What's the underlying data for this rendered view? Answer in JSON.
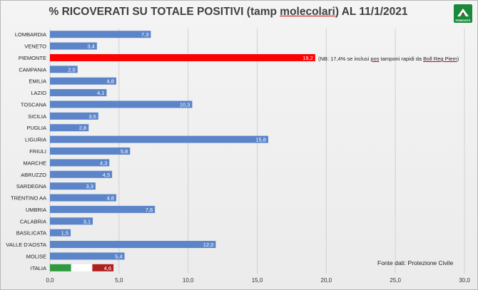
{
  "header": {
    "title_a": "% RICOVERATI SU TOTALE POSITIVI (tamp ",
    "title_b": "molecolari",
    "title_c": ") AL 11/1/2021",
    "logo_text": "PIEMONTE"
  },
  "note": {
    "a": "(NB: 17,4%  se inclusi ",
    "b": "pos",
    "c": " tamponi rapidi da ",
    "d": "Boll Reg Piem",
    "e": ")"
  },
  "source": "Fonte dati: Protezione Civile",
  "colors": {
    "bar": "#5b84c9",
    "highlight": "#ff0000",
    "italy_green": "#2e9b3f",
    "italy_white": "#ffffff",
    "italy_red": "#b02020"
  },
  "chart_data": {
    "type": "bar",
    "orientation": "horizontal",
    "categories": [
      "LOMBARDIA",
      "VENETO",
      "PIEMONTE",
      "CAMPANIA",
      "EMILIA",
      "LAZIO",
      "TOSCANA",
      "SICILIA",
      "PUGLIA",
      "LIGURIA",
      "FRIULI",
      "MARCHE",
      "ABRUZZO",
      "SARDEGNA",
      "TRENTINO AA",
      "UMBRIA",
      "CALABRIA",
      "BASILICATA",
      "VALLE D'AOSTA",
      "MOLISE",
      "ITALIA"
    ],
    "values": [
      7.3,
      3.4,
      19.2,
      2.0,
      4.8,
      4.1,
      10.3,
      3.5,
      2.8,
      15.8,
      5.8,
      4.3,
      4.5,
      3.3,
      4.8,
      7.6,
      3.1,
      1.5,
      12.0,
      5.4,
      4.6
    ],
    "value_labels": [
      "7,3",
      "3,4",
      "19,2",
      "2,0",
      "4,8",
      "4,1",
      "10,3",
      "3,5",
      "2,8",
      "15,8",
      "5,8",
      "4,3",
      "4,5",
      "3,3",
      "4,8",
      "7,6",
      "3,1",
      "1,5",
      "12,0",
      "5,4",
      "4,6"
    ],
    "xlim": [
      0,
      30
    ],
    "xticks": [
      0,
      5,
      10,
      15,
      20,
      25,
      30
    ],
    "xtick_labels": [
      "0,0",
      "5,0",
      "10,0",
      "15,0",
      "20,0",
      "25,0",
      "30,0"
    ],
    "grid": "vertical",
    "legend": "none"
  }
}
